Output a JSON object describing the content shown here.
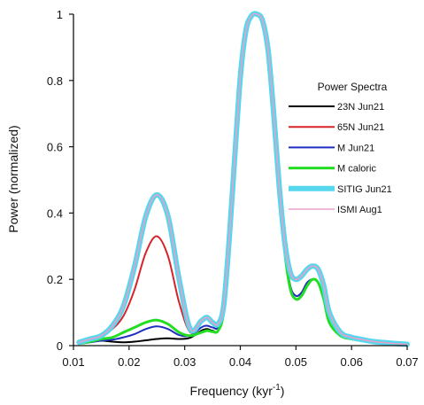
{
  "chart_data": {
    "type": "line",
    "xlabel": "Frequency (kyr",
    "xlabel_sup": "-1",
    "xlabel_close": ")",
    "ylabel": "Power (normalized)",
    "xlim": [
      0.01,
      0.07
    ],
    "ylim": [
      0,
      1
    ],
    "xticks": [
      "0.01",
      "0.02",
      "0.03",
      "0.04",
      "0.05",
      "0.06",
      "0.07"
    ],
    "yticks": [
      "0",
      "0.2",
      "0.4",
      "0.6",
      "0.8",
      "1"
    ],
    "legend": {
      "title": "Power Spectra",
      "placement": "right"
    },
    "x": [
      0.011,
      0.013,
      0.015,
      0.017,
      0.019,
      0.021,
      0.023,
      0.025,
      0.027,
      0.029,
      0.031,
      0.033,
      0.034,
      0.035,
      0.036,
      0.037,
      0.038,
      0.039,
      0.04,
      0.041,
      0.042,
      0.043,
      0.044,
      0.045,
      0.046,
      0.047,
      0.048,
      0.049,
      0.05,
      0.051,
      0.052,
      0.053,
      0.054,
      0.055,
      0.056,
      0.058,
      0.06,
      0.062,
      0.064,
      0.066,
      0.068,
      0.07
    ],
    "series": [
      {
        "name": "23N Jun21",
        "color": "#000000",
        "width": 2,
        "values": [
          0.005,
          0.012,
          0.015,
          0.012,
          0.01,
          0.012,
          0.016,
          0.02,
          0.022,
          0.02,
          0.024,
          0.045,
          0.05,
          0.045,
          0.045,
          0.1,
          0.3,
          0.55,
          0.8,
          0.94,
          0.99,
          1.0,
          0.98,
          0.88,
          0.68,
          0.46,
          0.28,
          0.17,
          0.14,
          0.15,
          0.18,
          0.2,
          0.19,
          0.14,
          0.07,
          0.03,
          0.02,
          0.015,
          0.01,
          0.008,
          0.005,
          0.004
        ]
      },
      {
        "name": "65N Jun21",
        "color": "#d8232a",
        "width": 2,
        "values": [
          0.01,
          0.02,
          0.03,
          0.05,
          0.09,
          0.17,
          0.28,
          0.33,
          0.27,
          0.13,
          0.04,
          0.07,
          0.08,
          0.065,
          0.06,
          0.12,
          0.32,
          0.57,
          0.81,
          0.95,
          0.995,
          1.0,
          0.98,
          0.89,
          0.7,
          0.48,
          0.31,
          0.22,
          0.2,
          0.21,
          0.23,
          0.24,
          0.23,
          0.18,
          0.1,
          0.04,
          0.025,
          0.018,
          0.012,
          0.009,
          0.006,
          0.004
        ]
      },
      {
        "name": "M Jun21",
        "color": "#1f2fbf",
        "width": 2,
        "values": [
          0.005,
          0.01,
          0.015,
          0.018,
          0.025,
          0.035,
          0.05,
          0.058,
          0.05,
          0.032,
          0.03,
          0.055,
          0.06,
          0.055,
          0.055,
          0.11,
          0.31,
          0.56,
          0.8,
          0.94,
          0.99,
          1.0,
          0.98,
          0.88,
          0.69,
          0.47,
          0.29,
          0.18,
          0.15,
          0.16,
          0.19,
          0.2,
          0.19,
          0.14,
          0.07,
          0.03,
          0.02,
          0.015,
          0.01,
          0.008,
          0.005,
          0.004
        ]
      },
      {
        "name": "M caloric",
        "color": "#22dd22",
        "width": 3,
        "values": [
          0.006,
          0.012,
          0.02,
          0.025,
          0.04,
          0.055,
          0.07,
          0.077,
          0.065,
          0.04,
          0.03,
          0.04,
          0.045,
          0.042,
          0.045,
          0.1,
          0.3,
          0.55,
          0.8,
          0.94,
          0.99,
          1.0,
          0.98,
          0.88,
          0.68,
          0.46,
          0.28,
          0.17,
          0.14,
          0.15,
          0.18,
          0.2,
          0.19,
          0.14,
          0.07,
          0.03,
          0.02,
          0.015,
          0.01,
          0.008,
          0.005,
          0.004
        ]
      },
      {
        "name": "SITIG Jun21",
        "color": "#55d8ee",
        "width": 6,
        "values": [
          0.01,
          0.02,
          0.03,
          0.06,
          0.12,
          0.24,
          0.39,
          0.455,
          0.39,
          0.2,
          0.05,
          0.075,
          0.085,
          0.07,
          0.065,
          0.12,
          0.32,
          0.57,
          0.81,
          0.95,
          0.995,
          1.0,
          0.98,
          0.89,
          0.7,
          0.48,
          0.31,
          0.22,
          0.2,
          0.21,
          0.23,
          0.24,
          0.23,
          0.18,
          0.1,
          0.04,
          0.025,
          0.018,
          0.012,
          0.009,
          0.006,
          0.004
        ]
      },
      {
        "name": "ISMI Aug1",
        "color": "#e8a0c8",
        "width": 1.6,
        "values": [
          0.01,
          0.02,
          0.03,
          0.06,
          0.12,
          0.24,
          0.39,
          0.455,
          0.39,
          0.2,
          0.05,
          0.075,
          0.085,
          0.07,
          0.065,
          0.12,
          0.32,
          0.57,
          0.81,
          0.95,
          0.995,
          1.0,
          0.98,
          0.89,
          0.7,
          0.48,
          0.31,
          0.22,
          0.2,
          0.21,
          0.23,
          0.24,
          0.23,
          0.18,
          0.1,
          0.04,
          0.025,
          0.018,
          0.012,
          0.009,
          0.006,
          0.004
        ]
      }
    ]
  }
}
